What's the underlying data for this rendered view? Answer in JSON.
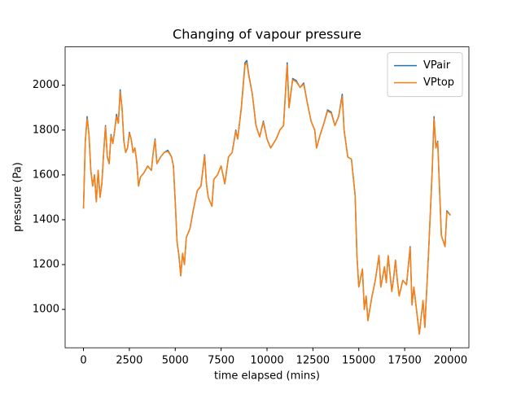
{
  "chart_data": {
    "type": "line",
    "title": "Changing of vapour pressure",
    "x_label": "time elapsed (mins)",
    "y_label": "pressure (Pa)",
    "x": [
      0,
      100,
      200,
      300,
      400,
      500,
      600,
      700,
      800,
      900,
      1000,
      1100,
      1200,
      1300,
      1400,
      1500,
      1600,
      1700,
      1800,
      1900,
      2000,
      2100,
      2200,
      2300,
      2400,
      2500,
      2600,
      2700,
      2800,
      2900,
      3000,
      3100,
      3300,
      3500,
      3700,
      3800,
      3900,
      4000,
      4200,
      4400,
      4600,
      4800,
      4900,
      5000,
      5100,
      5200,
      5300,
      5400,
      5500,
      5600,
      5800,
      6000,
      6200,
      6400,
      6600,
      6700,
      6800,
      7000,
      7100,
      7300,
      7500,
      7700,
      7900,
      8100,
      8300,
      8400,
      8600,
      8800,
      8900,
      9000,
      9200,
      9400,
      9600,
      9800,
      10000,
      10200,
      10500,
      10700,
      10900,
      11100,
      11200,
      11400,
      11600,
      11800,
      12000,
      12200,
      12400,
      12600,
      12700,
      12900,
      13100,
      13300,
      13500,
      13700,
      13900,
      14100,
      14200,
      14400,
      14600,
      14800,
      14900,
      15000,
      15200,
      15300,
      15400,
      15500,
      15700,
      15900,
      16100,
      16200,
      16400,
      16500,
      16600,
      16800,
      16900,
      17000,
      17100,
      17200,
      17400,
      17600,
      17800,
      17900,
      18000,
      18200,
      18300,
      18500,
      18600,
      18800,
      19000,
      19100,
      19200,
      19300,
      19500,
      19700,
      19800,
      20000
    ],
    "series": [
      {
        "name": "VPair",
        "color": "#1f77b4",
        "values": [
          1450,
          1750,
          1860,
          1780,
          1620,
          1550,
          1600,
          1480,
          1620,
          1500,
          1560,
          1700,
          1820,
          1680,
          1650,
          1780,
          1740,
          1800,
          1870,
          1830,
          1980,
          1900,
          1750,
          1700,
          1720,
          1790,
          1760,
          1700,
          1720,
          1660,
          1550,
          1590,
          1610,
          1640,
          1620,
          1700,
          1760,
          1650,
          1680,
          1700,
          1710,
          1680,
          1640,
          1480,
          1300,
          1240,
          1150,
          1250,
          1200,
          1320,
          1360,
          1450,
          1530,
          1550,
          1690,
          1560,
          1500,
          1460,
          1580,
          1600,
          1640,
          1560,
          1680,
          1700,
          1800,
          1760,
          1900,
          2100,
          2110,
          2050,
          1960,
          1820,
          1770,
          1840,
          1760,
          1720,
          1760,
          1800,
          1820,
          2100,
          1900,
          2030,
          2020,
          1990,
          2010,
          1920,
          1840,
          1800,
          1720,
          1780,
          1830,
          1890,
          1880,
          1820,
          1860,
          1960,
          1800,
          1680,
          1670,
          1510,
          1240,
          1100,
          1180,
          1000,
          1060,
          950,
          1050,
          1130,
          1240,
          1100,
          1190,
          1120,
          1240,
          1080,
          1140,
          1220,
          1130,
          1060,
          1130,
          1110,
          1280,
          1020,
          1100,
          960,
          890,
          1040,
          920,
          1250,
          1620,
          1860,
          1720,
          1750,
          1330,
          1280,
          1440,
          1420
        ]
      },
      {
        "name": "VPtop",
        "color": "#ff7f0e",
        "values": [
          1450,
          1750,
          1850,
          1780,
          1620,
          1550,
          1600,
          1480,
          1620,
          1500,
          1560,
          1700,
          1815,
          1680,
          1650,
          1775,
          1740,
          1800,
          1860,
          1830,
          1970,
          1900,
          1750,
          1700,
          1720,
          1785,
          1760,
          1700,
          1720,
          1660,
          1550,
          1590,
          1610,
          1640,
          1620,
          1700,
          1755,
          1650,
          1680,
          1700,
          1705,
          1680,
          1640,
          1480,
          1300,
          1240,
          1150,
          1250,
          1200,
          1320,
          1360,
          1450,
          1530,
          1550,
          1685,
          1560,
          1500,
          1460,
          1580,
          1600,
          1640,
          1560,
          1680,
          1700,
          1795,
          1760,
          1895,
          2090,
          2100,
          2045,
          1960,
          1820,
          1770,
          1835,
          1760,
          1720,
          1760,
          1800,
          1820,
          2090,
          1900,
          2025,
          2015,
          1990,
          2005,
          1920,
          1840,
          1800,
          1720,
          1780,
          1830,
          1885,
          1875,
          1820,
          1860,
          1950,
          1800,
          1680,
          1670,
          1510,
          1240,
          1100,
          1180,
          1000,
          1060,
          950,
          1050,
          1130,
          1240,
          1100,
          1190,
          1120,
          1240,
          1080,
          1140,
          1220,
          1130,
          1060,
          1130,
          1110,
          1275,
          1020,
          1100,
          960,
          890,
          1040,
          920,
          1250,
          1615,
          1850,
          1720,
          1745,
          1330,
          1280,
          1435,
          1420
        ]
      }
    ],
    "xlim": [
      -1000,
      21000
    ],
    "ylim": [
      829,
      2171
    ],
    "xticks": [
      0,
      2500,
      5000,
      7500,
      10000,
      12500,
      15000,
      17500,
      20000
    ],
    "yticks": [
      1000,
      1200,
      1400,
      1600,
      1800,
      2000
    ],
    "legend": "upper right"
  }
}
